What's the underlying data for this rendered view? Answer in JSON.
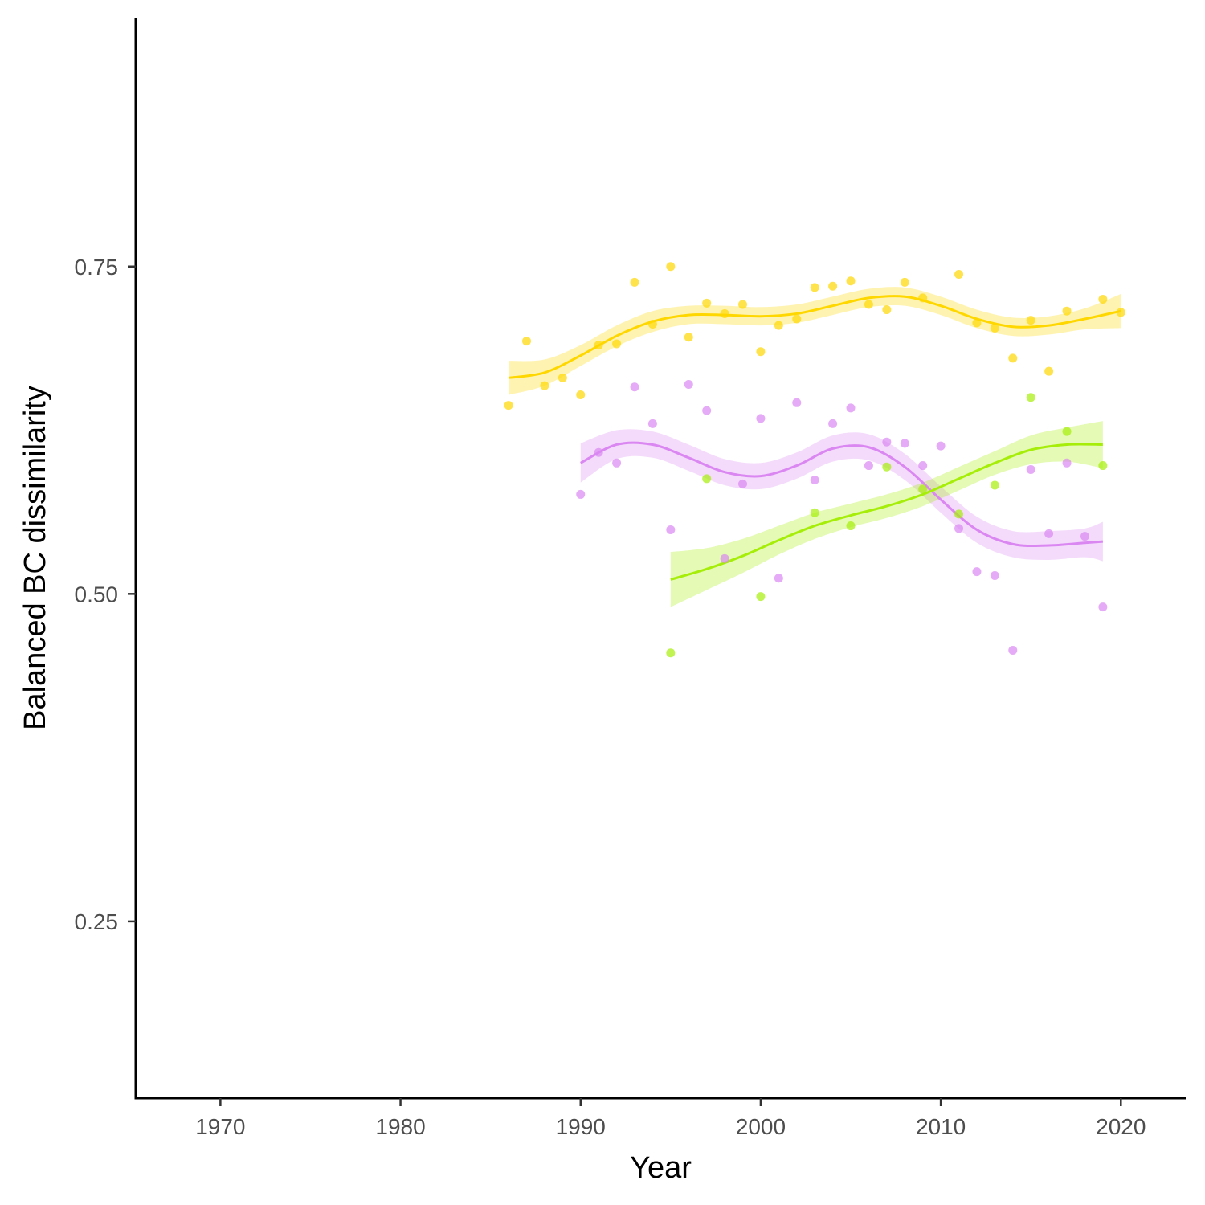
{
  "chart_data": {
    "type": "scatter",
    "xlabel": "Year",
    "ylabel": "Balanced BC dissimilarity",
    "xlim": [
      1965.3,
      2023.6
    ],
    "ylim": [
      0.115,
      0.94
    ],
    "x_ticks": [
      1970,
      1980,
      1990,
      2000,
      2010,
      2020
    ],
    "y_ticks": [
      0.25,
      0.5,
      0.75
    ],
    "x_tick_labels": [
      "1970",
      "1980",
      "1990",
      "2000",
      "2010",
      "2020"
    ],
    "y_tick_labels": [
      "0.25",
      "0.50",
      "0.75"
    ],
    "grid": false,
    "legend": "none",
    "series": [
      {
        "color": "#FFD700",
        "points": [
          [
            1986,
            0.644
          ],
          [
            1987,
            0.693
          ],
          [
            1988,
            0.659
          ],
          [
            1989,
            0.665
          ],
          [
            1990,
            0.652
          ],
          [
            1991,
            0.69
          ],
          [
            1992,
            0.691
          ],
          [
            1993,
            0.738
          ],
          [
            1994,
            0.706
          ],
          [
            1995,
            0.75
          ],
          [
            1996,
            0.696
          ],
          [
            1997,
            0.722
          ],
          [
            1998,
            0.714
          ],
          [
            1999,
            0.721
          ],
          [
            2000,
            0.685
          ],
          [
            2001,
            0.705
          ],
          [
            2002,
            0.71
          ],
          [
            2003,
            0.734
          ],
          [
            2004,
            0.735
          ],
          [
            2005,
            0.739
          ],
          [
            2006,
            0.721
          ],
          [
            2007,
            0.717
          ],
          [
            2008,
            0.738
          ],
          [
            2009,
            0.726
          ],
          [
            2011,
            0.744
          ],
          [
            2012,
            0.707
          ],
          [
            2013,
            0.703
          ],
          [
            2014,
            0.68
          ],
          [
            2015,
            0.709
          ],
          [
            2016,
            0.67
          ],
          [
            2017,
            0.716
          ],
          [
            2019,
            0.725
          ],
          [
            2020,
            0.715
          ]
        ],
        "smooth": {
          "x": [
            1986,
            1988,
            1990,
            1992,
            1994,
            1996,
            1998,
            2000,
            2002,
            2004,
            2006,
            2008,
            2010,
            2012,
            2014,
            2016,
            2018,
            2020
          ],
          "y": [
            0.665,
            0.669,
            0.682,
            0.697,
            0.708,
            0.713,
            0.713,
            0.712,
            0.714,
            0.72,
            0.726,
            0.727,
            0.72,
            0.71,
            0.704,
            0.705,
            0.71,
            0.716
          ],
          "lo": [
            0.652,
            0.659,
            0.674,
            0.689,
            0.7,
            0.706,
            0.706,
            0.705,
            0.707,
            0.713,
            0.719,
            0.72,
            0.713,
            0.703,
            0.697,
            0.698,
            0.702,
            0.703
          ],
          "hi": [
            0.678,
            0.679,
            0.69,
            0.705,
            0.716,
            0.72,
            0.72,
            0.719,
            0.721,
            0.727,
            0.733,
            0.734,
            0.727,
            0.717,
            0.711,
            0.712,
            0.718,
            0.729
          ]
        }
      },
      {
        "color": "#DA87F2",
        "points": [
          [
            1990,
            0.576
          ],
          [
            1991,
            0.608
          ],
          [
            1992,
            0.6
          ],
          [
            1993,
            0.658
          ],
          [
            1994,
            0.63
          ],
          [
            1995,
            0.549
          ],
          [
            1996,
            0.66
          ],
          [
            1997,
            0.64
          ],
          [
            1998,
            0.527
          ],
          [
            1999,
            0.584
          ],
          [
            2000,
            0.634
          ],
          [
            2001,
            0.512
          ],
          [
            2002,
            0.646
          ],
          [
            2003,
            0.587
          ],
          [
            2004,
            0.63
          ],
          [
            2005,
            0.642
          ],
          [
            2006,
            0.598
          ],
          [
            2007,
            0.616
          ],
          [
            2008,
            0.615
          ],
          [
            2009,
            0.598
          ],
          [
            2010,
            0.613
          ],
          [
            2011,
            0.55
          ],
          [
            2012,
            0.517
          ],
          [
            2013,
            0.514
          ],
          [
            2014,
            0.457
          ],
          [
            2015,
            0.595
          ],
          [
            2016,
            0.546
          ],
          [
            2017,
            0.6
          ],
          [
            2018,
            0.544
          ],
          [
            2019,
            0.49
          ]
        ],
        "smooth": {
          "x": [
            1990,
            1992,
            1994,
            1996,
            1998,
            2000,
            2002,
            2004,
            2006,
            2008,
            2010,
            2012,
            2014,
            2016,
            2018,
            2019
          ],
          "y": [
            0.6,
            0.614,
            0.614,
            0.604,
            0.593,
            0.59,
            0.598,
            0.611,
            0.612,
            0.597,
            0.572,
            0.549,
            0.538,
            0.537,
            0.539,
            0.54
          ],
          "lo": [
            0.585,
            0.603,
            0.604,
            0.594,
            0.583,
            0.58,
            0.588,
            0.601,
            0.602,
            0.587,
            0.562,
            0.539,
            0.528,
            0.526,
            0.528,
            0.525
          ],
          "hi": [
            0.615,
            0.625,
            0.624,
            0.614,
            0.603,
            0.6,
            0.608,
            0.621,
            0.622,
            0.607,
            0.582,
            0.559,
            0.548,
            0.548,
            0.55,
            0.555
          ]
        }
      },
      {
        "color": "#A6EE0A",
        "points": [
          [
            1995,
            0.455
          ],
          [
            1997,
            0.588
          ],
          [
            2000,
            0.498
          ],
          [
            2003,
            0.562
          ],
          [
            2005,
            0.552
          ],
          [
            2007,
            0.597
          ],
          [
            2009,
            0.58
          ],
          [
            2011,
            0.561
          ],
          [
            2013,
            0.583
          ],
          [
            2015,
            0.65
          ],
          [
            2017,
            0.624
          ],
          [
            2019,
            0.598
          ]
        ],
        "smooth": {
          "x": [
            1995,
            1997,
            1999,
            2001,
            2003,
            2005,
            2007,
            2009,
            2011,
            2013,
            2015,
            2017,
            2019
          ],
          "y": [
            0.511,
            0.519,
            0.529,
            0.541,
            0.552,
            0.56,
            0.567,
            0.576,
            0.588,
            0.6,
            0.61,
            0.614,
            0.614
          ],
          "lo": [
            0.49,
            0.503,
            0.516,
            0.53,
            0.542,
            0.551,
            0.558,
            0.567,
            0.579,
            0.591,
            0.599,
            0.601,
            0.596
          ],
          "hi": [
            0.532,
            0.535,
            0.542,
            0.552,
            0.562,
            0.569,
            0.576,
            0.585,
            0.597,
            0.609,
            0.621,
            0.627,
            0.632
          ]
        }
      }
    ]
  }
}
